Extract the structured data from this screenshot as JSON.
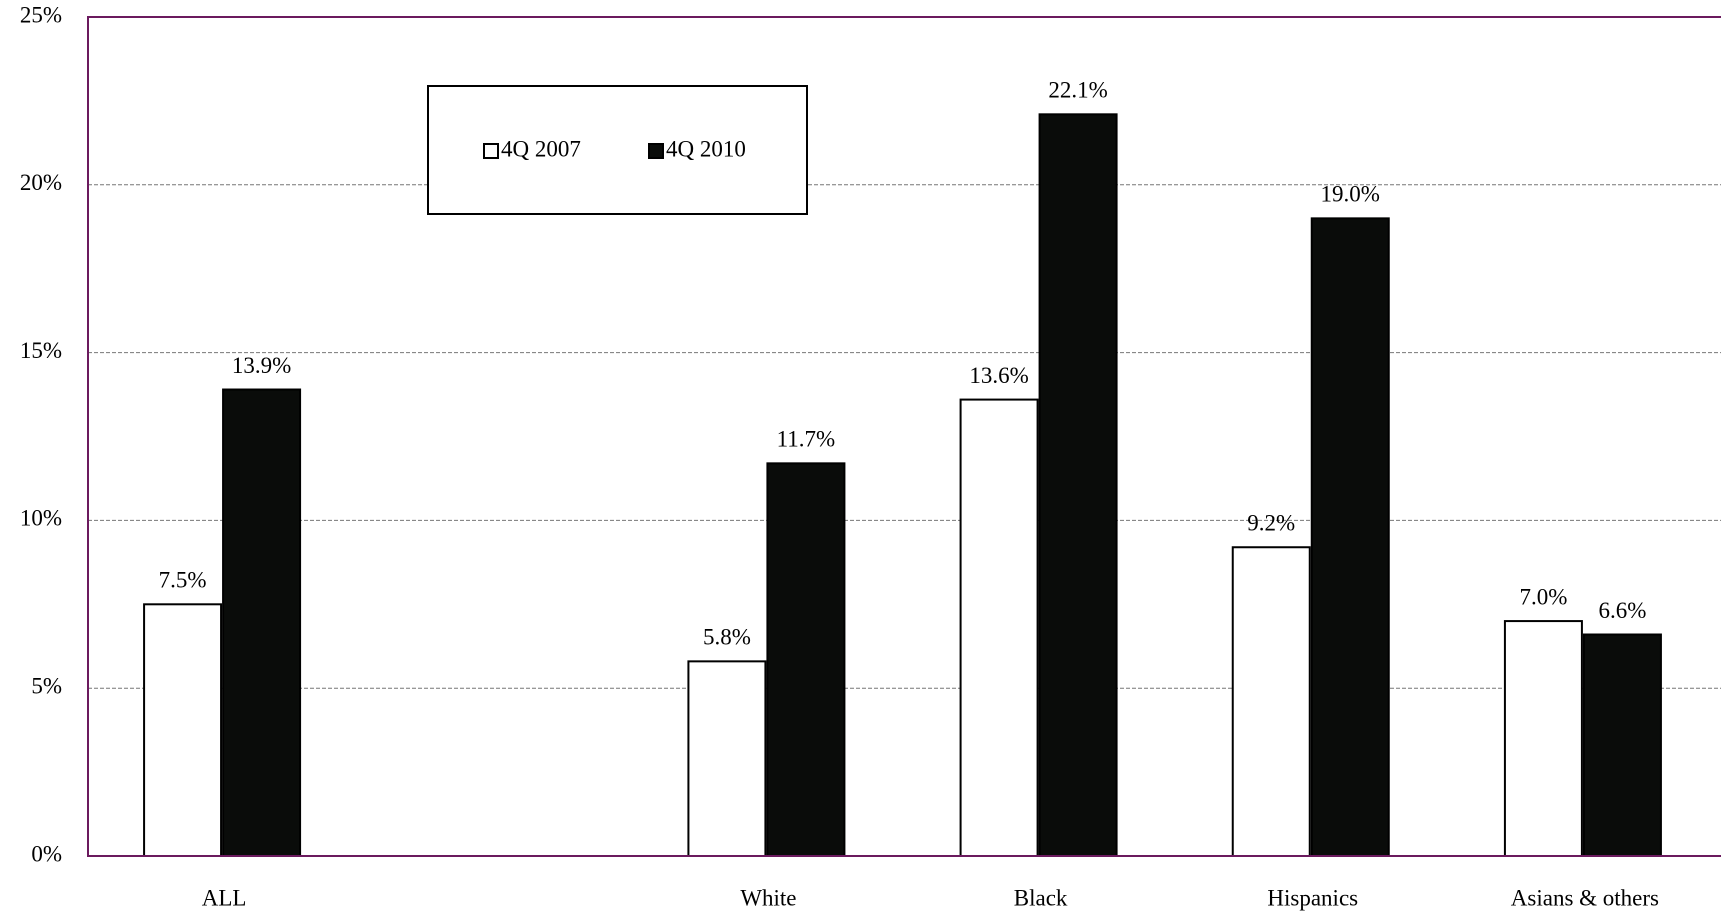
{
  "chart_data": {
    "type": "bar",
    "categories": [
      "ALL",
      null,
      "White",
      "Black",
      "Hispanics",
      "Asians & others"
    ],
    "series": [
      {
        "name": "4Q 2007",
        "color": "#ffffff",
        "values": [
          7.5,
          null,
          5.8,
          13.6,
          9.2,
          7.0
        ],
        "value_labels": [
          "7.5%",
          null,
          "5.8%",
          "13.6%",
          "9.2%",
          "7.0%"
        ]
      },
      {
        "name": "4Q 2010",
        "color": "#0a0c0a",
        "values": [
          13.9,
          null,
          11.7,
          22.1,
          19.0,
          6.6
        ],
        "value_labels": [
          "13.9%",
          null,
          "11.7%",
          "22.1%",
          "19.0%",
          "6.6%"
        ]
      }
    ],
    "ylim": [
      0,
      25
    ],
    "yticks": [
      {
        "value": 0,
        "label": "0%"
      },
      {
        "value": 5,
        "label": "5%"
      },
      {
        "value": 10,
        "label": "10%"
      },
      {
        "value": 15,
        "label": "15%"
      },
      {
        "value": 20,
        "label": "20%"
      },
      {
        "value": 25,
        "label": "25%"
      }
    ],
    "grid": true,
    "legend": "top-left"
  }
}
